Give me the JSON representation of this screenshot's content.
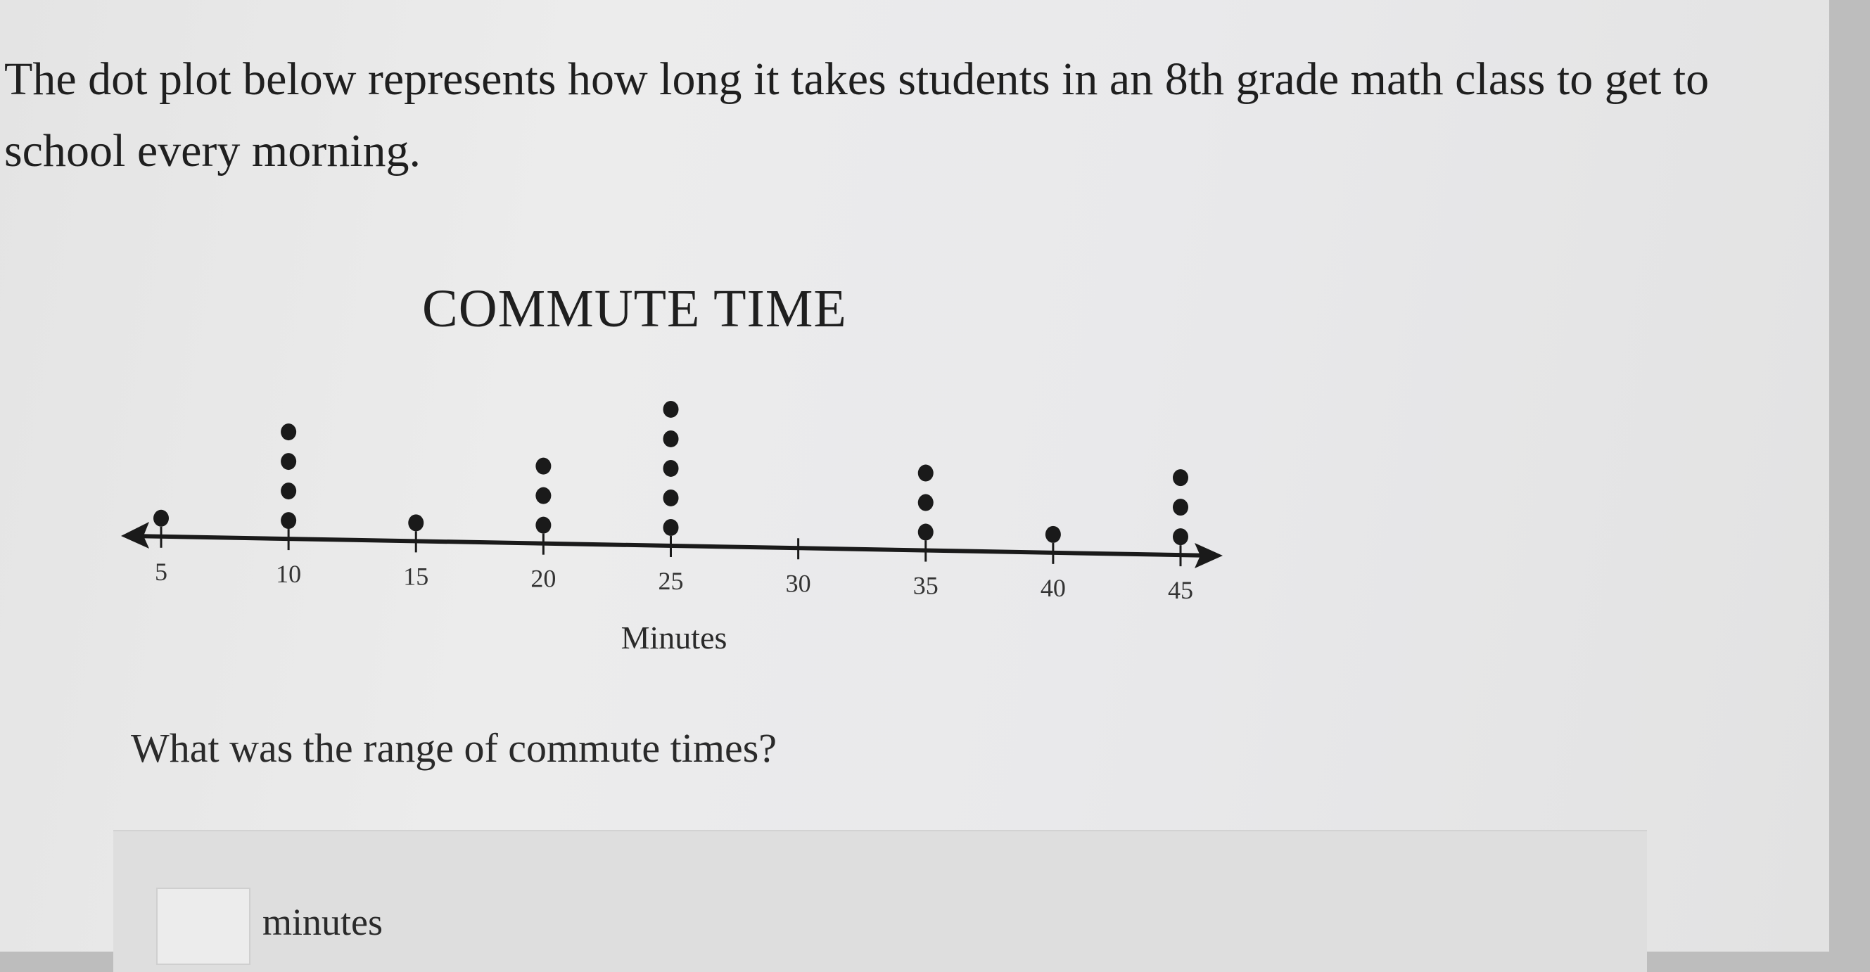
{
  "prompt": "The dot plot below represents how long it takes students in an 8th grade math class to get to school every morning.",
  "question": "What was the range of commute times?",
  "answer": {
    "value": "",
    "unit": "minutes"
  },
  "chart_data": {
    "type": "dot plot",
    "title": "COMMUTE TIME",
    "xlabel": "Minutes",
    "x_ticks": [
      5,
      10,
      15,
      20,
      25,
      30,
      35,
      40,
      45
    ],
    "tick_labels": [
      "5",
      "10",
      "15",
      "20",
      "25",
      "30",
      "35",
      "40",
      "45"
    ],
    "xlim": [
      5,
      45
    ],
    "values": [
      5,
      10,
      15,
      20,
      25,
      30,
      35,
      40,
      45
    ],
    "counts": [
      1,
      4,
      1,
      3,
      5,
      0,
      3,
      1,
      3
    ],
    "dot_color": "#1a1a1a"
  }
}
